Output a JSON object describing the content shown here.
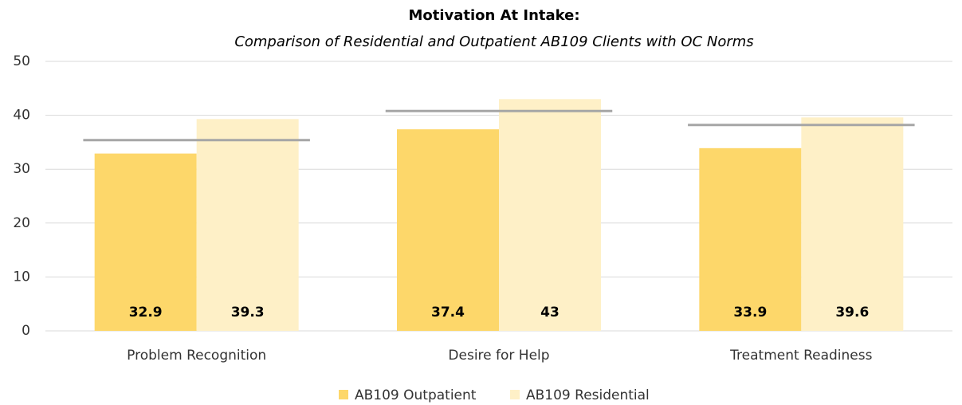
{
  "chart_data": {
    "type": "bar",
    "title": "Motivation At Intake:",
    "subtitle": "Comparison of Residential and Outpatient AB109 Clients with OC Norms",
    "categories": [
      "Problem Recognition",
      "Desire for Help",
      "Treatment Readiness"
    ],
    "series": [
      {
        "name": "AB109 Outpatient",
        "color": "#fdd76a",
        "values": [
          32.9,
          37.4,
          33.9
        ]
      },
      {
        "name": "AB109 Residential",
        "color": "#fef0c7",
        "values": [
          39.3,
          43,
          39.6
        ]
      }
    ],
    "norms": {
      "color": "#a6a6a6",
      "values": [
        35.4,
        40.8,
        38.2
      ]
    },
    "ylim": [
      0,
      50
    ],
    "yticks": [
      0,
      10,
      20,
      30,
      40,
      50
    ],
    "grid": true,
    "legend": "bottom"
  }
}
